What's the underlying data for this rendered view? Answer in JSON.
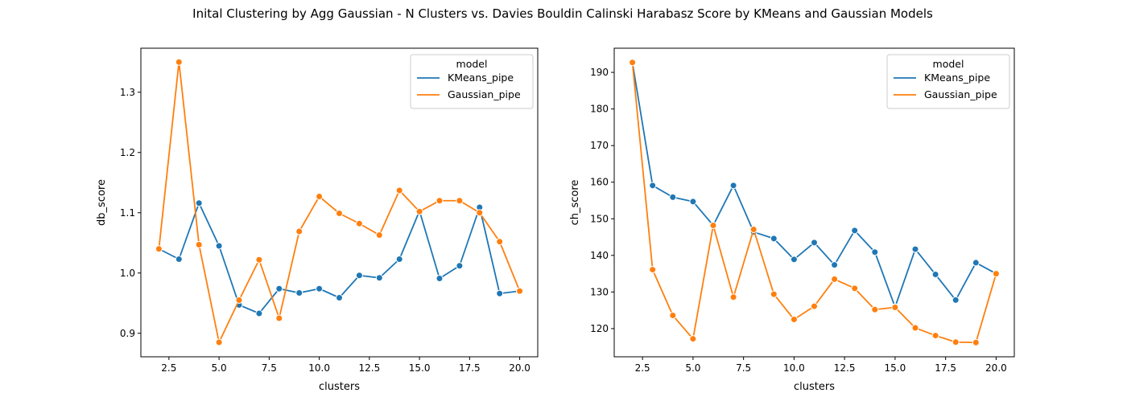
{
  "figure_title": "Inital Clustering by Agg Gaussian - N Clusters vs. Davies Bouldin Calinski Harabasz Score by KMeans and Gaussian Models",
  "colors": {
    "KMeans_pipe": "#1f77b4",
    "Gaussian_pipe": "#ff7f0e"
  },
  "chart_data": [
    {
      "type": "line",
      "xlabel": "clusters",
      "ylabel": "db_score",
      "xlim": [
        1.1,
        20.9
      ],
      "ylim": [
        0.861,
        1.373
      ],
      "xticks": [
        2.5,
        5.0,
        7.5,
        10.0,
        12.5,
        15.0,
        17.5,
        20.0
      ],
      "xtick_labels": [
        "2.5",
        "5.0",
        "7.5",
        "10.0",
        "12.5",
        "15.0",
        "17.5",
        "20.0"
      ],
      "yticks": [
        0.9,
        1.0,
        1.1,
        1.2,
        1.3
      ],
      "ytick_labels": [
        "0.9",
        "1.0",
        "1.1",
        "1.2",
        "1.3"
      ],
      "grid": false,
      "legend": {
        "title": "model",
        "position": "top-right",
        "entries": [
          "KMeans_pipe",
          "Gaussian_pipe"
        ]
      },
      "x": [
        2,
        3,
        4,
        5,
        6,
        7,
        8,
        9,
        10,
        11,
        12,
        13,
        14,
        15,
        16,
        17,
        18,
        19,
        20
      ],
      "series": [
        {
          "name": "KMeans_pipe",
          "values": [
            1.04,
            1.023,
            1.116,
            1.045,
            0.947,
            0.933,
            0.974,
            0.967,
            0.974,
            0.959,
            0.996,
            0.992,
            1.023,
            1.103,
            0.991,
            1.012,
            1.109,
            0.966,
            0.97
          ]
        },
        {
          "name": "Gaussian_pipe",
          "values": [
            1.04,
            1.35,
            1.047,
            0.885,
            0.955,
            1.022,
            0.925,
            1.069,
            1.127,
            1.099,
            1.082,
            1.063,
            1.137,
            1.102,
            1.12,
            1.12,
            1.1,
            1.052,
            0.97
          ]
        }
      ]
    },
    {
      "type": "line",
      "xlabel": "clusters",
      "ylabel": "ch_score",
      "xlim": [
        1.1,
        20.9
      ],
      "ylim": [
        112.3,
        196.6
      ],
      "xticks": [
        2.5,
        5.0,
        7.5,
        10.0,
        12.5,
        15.0,
        17.5,
        20.0
      ],
      "xtick_labels": [
        "2.5",
        "5.0",
        "7.5",
        "10.0",
        "12.5",
        "15.0",
        "17.5",
        "20.0"
      ],
      "yticks": [
        120,
        130,
        140,
        150,
        160,
        170,
        180,
        190
      ],
      "ytick_labels": [
        "120",
        "130",
        "140",
        "150",
        "160",
        "170",
        "180",
        "190"
      ],
      "grid": false,
      "legend": {
        "title": "model",
        "position": "top-right",
        "entries": [
          "KMeans_pipe",
          "Gaussian_pipe"
        ]
      },
      "x": [
        2,
        3,
        4,
        5,
        6,
        7,
        8,
        9,
        10,
        11,
        12,
        13,
        14,
        15,
        16,
        17,
        18,
        19,
        20
      ],
      "series": [
        {
          "name": "KMeans_pipe",
          "values": [
            192.7,
            159.1,
            155.9,
            154.7,
            148.2,
            159.1,
            146.4,
            144.6,
            138.9,
            143.5,
            137.4,
            146.8,
            140.9,
            125.9,
            141.7,
            134.8,
            127.8,
            138.0,
            135.0
          ]
        },
        {
          "name": "Gaussian_pipe",
          "values": [
            192.7,
            136.1,
            123.6,
            117.2,
            148.2,
            128.6,
            147.1,
            129.4,
            122.5,
            126.1,
            133.5,
            131.0,
            125.2,
            125.8,
            120.2,
            118.1,
            116.3,
            116.2,
            135.0
          ]
        }
      ]
    }
  ]
}
